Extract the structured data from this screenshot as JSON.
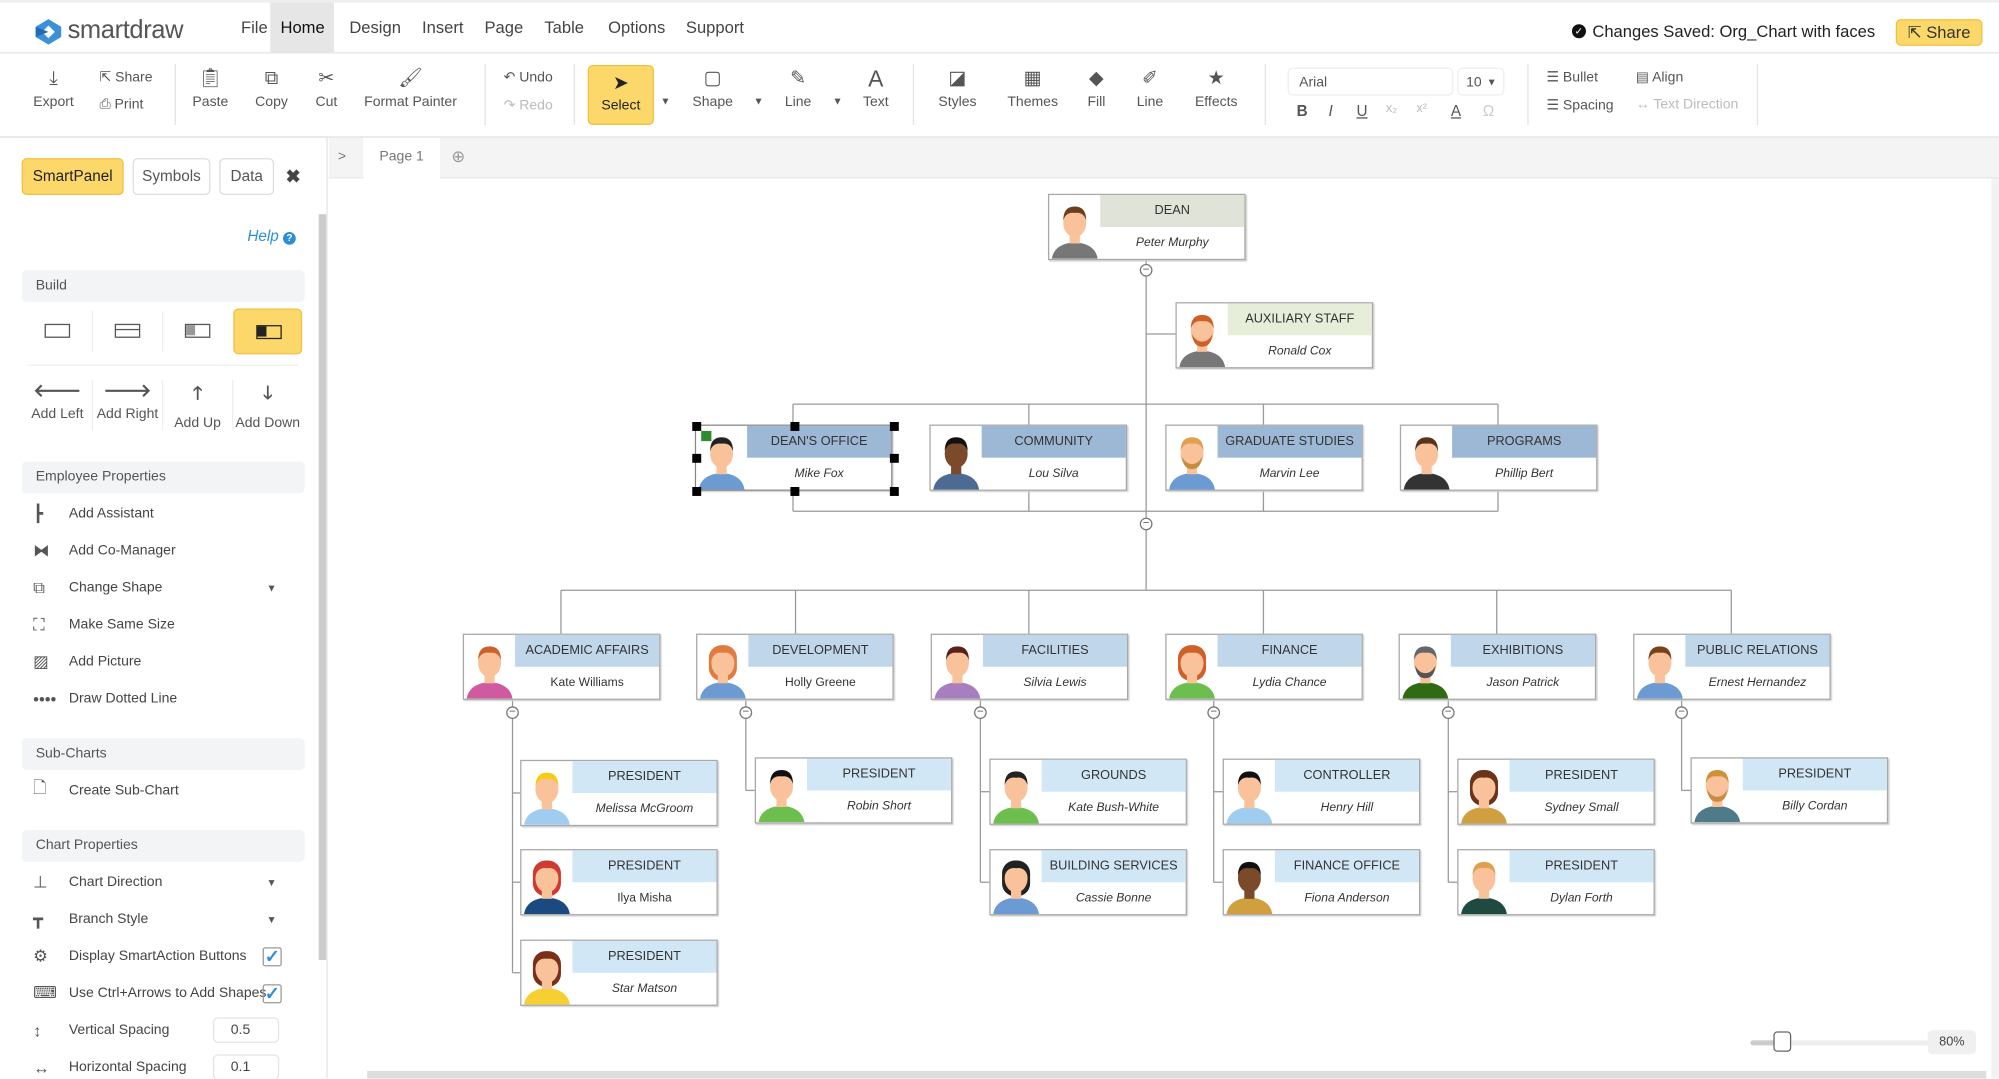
{
  "app": {
    "name": "smartdraw",
    "status_text": "Changes Saved: Org_Chart with faces",
    "share_label": "Share",
    "accent": "#fcd86b"
  },
  "menu": [
    "File",
    "Home",
    "Design",
    "Insert",
    "Page",
    "Table",
    "Options",
    "Support"
  ],
  "active_menu": "Home",
  "toolbar": {
    "export": "Export",
    "share": "Share",
    "print": "Print",
    "paste": "Paste",
    "copy": "Copy",
    "cut": "Cut",
    "format_painter": "Format Painter",
    "undo": "Undo",
    "redo": "Redo",
    "select": "Select",
    "shape": "Shape",
    "line": "Line",
    "text": "Text",
    "styles": "Styles",
    "themes": "Themes",
    "fill": "Fill",
    "line2": "Line",
    "effects": "Effects",
    "font": "Arial",
    "font_size": "10",
    "bold": "B",
    "italic": "I",
    "underline": "U",
    "subscript": "x₂",
    "superscript": "x²",
    "font_color": "A",
    "symbol": "Ω",
    "bullet": "Bullet",
    "align": "Align",
    "spacing": "Spacing",
    "text_direction": "Text Direction"
  },
  "panel": {
    "tabs": [
      "SmartPanel",
      "Symbols",
      "Data"
    ],
    "help": "Help",
    "build": "Build",
    "add": [
      "Add Left",
      "Add Right",
      "Add Up",
      "Add Down"
    ],
    "employee_properties": "Employee Properties",
    "employee_items": [
      "Add Assistant",
      "Add Co-Manager",
      "Change Shape",
      "Make Same Size",
      "Add Picture",
      "Draw Dotted Line"
    ],
    "sub_charts": "Sub-Charts",
    "create_sub_chart": "Create Sub-Chart",
    "chart_properties": "Chart Properties",
    "chart_items": [
      "Chart Direction",
      "Branch Style",
      "Display SmartAction Buttons",
      "Use Ctrl+Arrows to Add Shapes",
      "Vertical Spacing",
      "Horizontal Spacing"
    ],
    "display_smartaction_checked": true,
    "ctrl_arrows_checked": true,
    "vertical_spacing": "0.5",
    "horizontal_spacing": "0.1"
  },
  "canvas": {
    "expand": ">",
    "page_tab": "Page 1",
    "add_page": "⊕",
    "zoom": "80%",
    "zoom_level": 0.15
  },
  "org": {
    "dean": {
      "title": "DEAN",
      "name": "Peter Murphy"
    },
    "aux": {
      "title": "AUXILIARY STAFF",
      "name": "Ronald Cox"
    },
    "l2": [
      {
        "title": "DEAN'S OFFICE",
        "name": "Mike Fox"
      },
      {
        "title": "COMMUNITY",
        "name": "Lou Silva"
      },
      {
        "title": "GRADUATE STUDIES",
        "name": "Marvin Lee"
      },
      {
        "title": "PROGRAMS",
        "name": "Phillip Bert"
      }
    ],
    "l3": [
      {
        "title": "ACADEMIC AFFAIRS",
        "name": "Kate Williams"
      },
      {
        "title": "DEVELOPMENT",
        "name": "Holly Greene"
      },
      {
        "title": "FACILITIES",
        "name": "Silvia Lewis"
      },
      {
        "title": "FINANCE",
        "name": "Lydia Chance"
      },
      {
        "title": "EXHIBITIONS",
        "name": "Jason Patrick"
      },
      {
        "title": "PUBLIC RELATIONS",
        "name": "Ernest Hernandez"
      }
    ],
    "l4": [
      {
        "title": "PRESIDENT",
        "name": "Melissa McGroom"
      },
      {
        "title": "PRESIDENT",
        "name": "Ilya Misha"
      },
      {
        "title": "PRESIDENT",
        "name": "Star Matson"
      },
      {
        "title": "PRESIDENT",
        "name": "Robin Short"
      },
      {
        "title": "GROUNDS",
        "name": "Kate Bush-White"
      },
      {
        "title": "BUILDING SERVICES",
        "name": "Cassie Bonne"
      },
      {
        "title": "CONTROLLER",
        "name": "Henry Hill"
      },
      {
        "title": "FINANCE OFFICE",
        "name": "Fiona Anderson"
      },
      {
        "title": "PRESIDENT",
        "name": "Sydney Small"
      },
      {
        "title": "PRESIDENT",
        "name": "Dylan Forth"
      },
      {
        "title": "PRESIDENT",
        "name": "Billy Cordan"
      }
    ]
  }
}
